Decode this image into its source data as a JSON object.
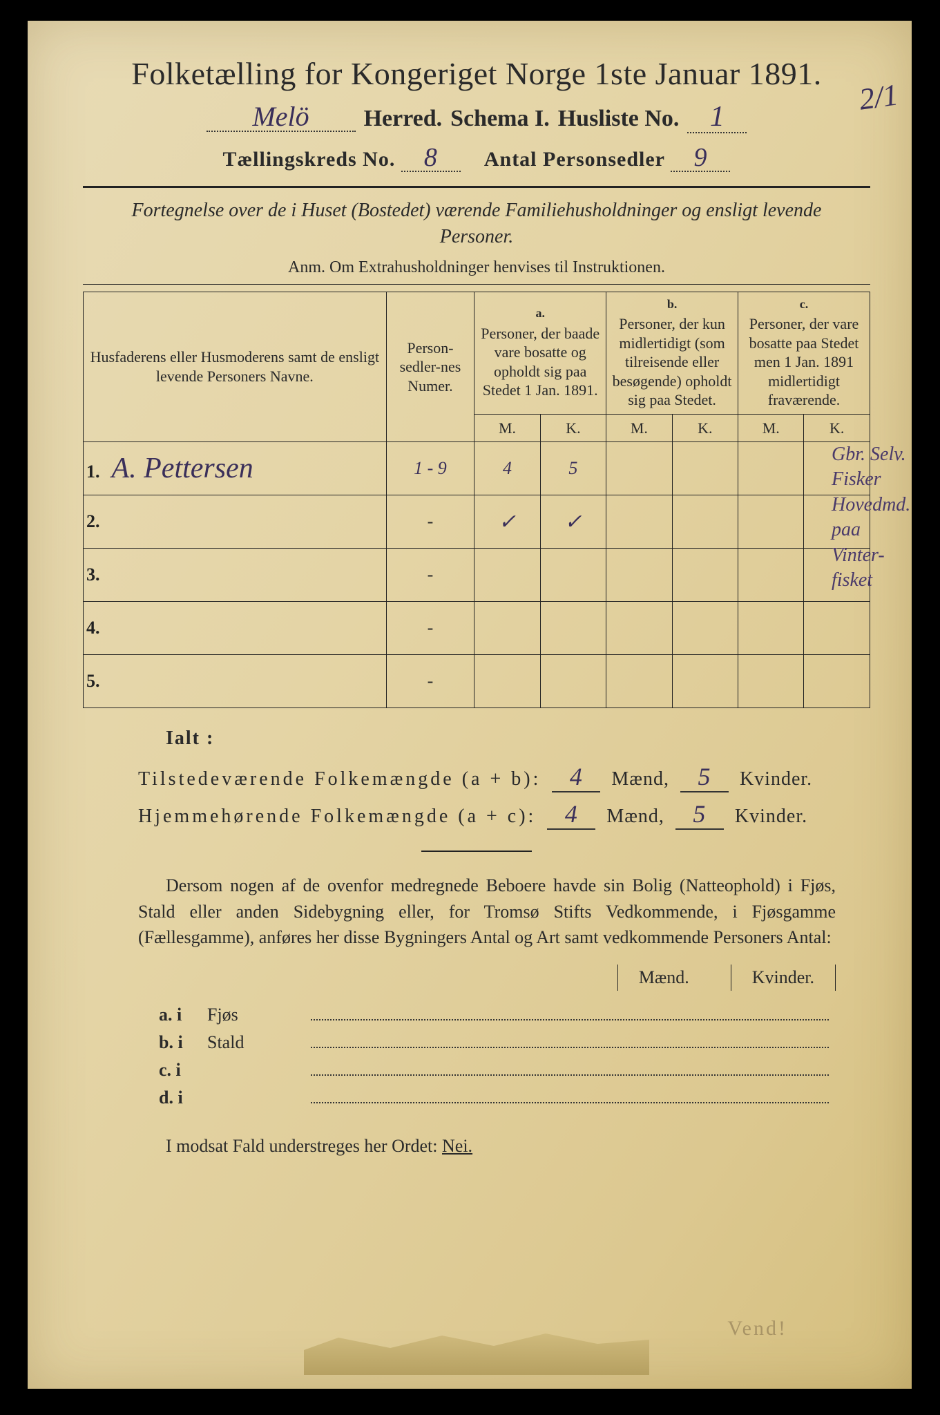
{
  "title": "Folketælling for Kongeriget Norge 1ste Januar 1891.",
  "herred_value": "Melö",
  "herred_label": "Herred.",
  "schema_label": "Schema I.",
  "husliste_label": "Husliste No.",
  "husliste_value": "1",
  "corner_mark": "2/1",
  "kreds_label": "Tællingskreds No.",
  "kreds_value": "8",
  "antal_label": "Antal Personsedler",
  "antal_value": "9",
  "subtitle": "Fortegnelse over de i Huset (Bostedet) værende Familiehusholdninger og ensligt levende Personer.",
  "anm": "Anm. Om Extrahusholdninger henvises til Instruktionen.",
  "col_name": "Husfaderens eller Husmoderens samt de ensligt levende Personers Navne.",
  "col_numer": "Person-sedler-nes Numer.",
  "col_a_tag": "a.",
  "col_a": "Personer, der baade vare bosatte og opholdt sig paa Stedet 1 Jan. 1891.",
  "col_b_tag": "b.",
  "col_b": "Personer, der kun midlertidigt (som tilreisende eller besøgende) opholdt sig paa Stedet.",
  "col_c_tag": "c.",
  "col_c": "Personer, der vare bosatte paa Stedet men 1 Jan. 1891 midlertidigt fraværende.",
  "mk_m": "M.",
  "mk_k": "K.",
  "rows": {
    "r1_num": "1.",
    "r1_name": "A. Pettersen",
    "r1_numer": "1 - 9",
    "r1_am": "4",
    "r1_ak": "5",
    "r2_num": "2.",
    "r2_am": "✓",
    "r2_ak": "✓",
    "r3_num": "3.",
    "r4_num": "4.",
    "r5_num": "5."
  },
  "margin_note": "Gbr. Selv. Fisker Hovedmd. paa Vinter-fisket",
  "ialt": "Ialt :",
  "sum1_label": "Tilstedeværende Folkemængde (a + b):",
  "sum2_label": "Hjemmehørende Folkemængde (a + c):",
  "maend": "Mænd,",
  "kvinder": "Kvinder.",
  "sum1_m": "4",
  "sum1_k": "5",
  "sum2_m": "4",
  "sum2_k": "5",
  "para": "Dersom nogen af de ovenfor medregnede Beboere havde sin Bolig (Natteophold) i Fjøs, Stald eller anden Sidebygning eller, for Tromsø Stifts Vedkommende, i Fjøsgamme (Fællesgamme), anføres her disse Bygningers Antal og Art samt vedkommende Personers Antal:",
  "mk_maend": "Mænd.",
  "mk_kvinder": "Kvinder.",
  "side": {
    "a": "a.  i",
    "a_txt": "Fjøs",
    "b": "b.  i",
    "b_txt": "Stald",
    "c": "c.  i",
    "d": "d.  i"
  },
  "nei": "I modsat Fald understreges her Ordet:",
  "nei_word": "Nei.",
  "stamp": "Vend!",
  "colors": {
    "paper": "#e4d4a5",
    "ink": "#2a2a2a",
    "handwriting": "#3a2f5a"
  }
}
